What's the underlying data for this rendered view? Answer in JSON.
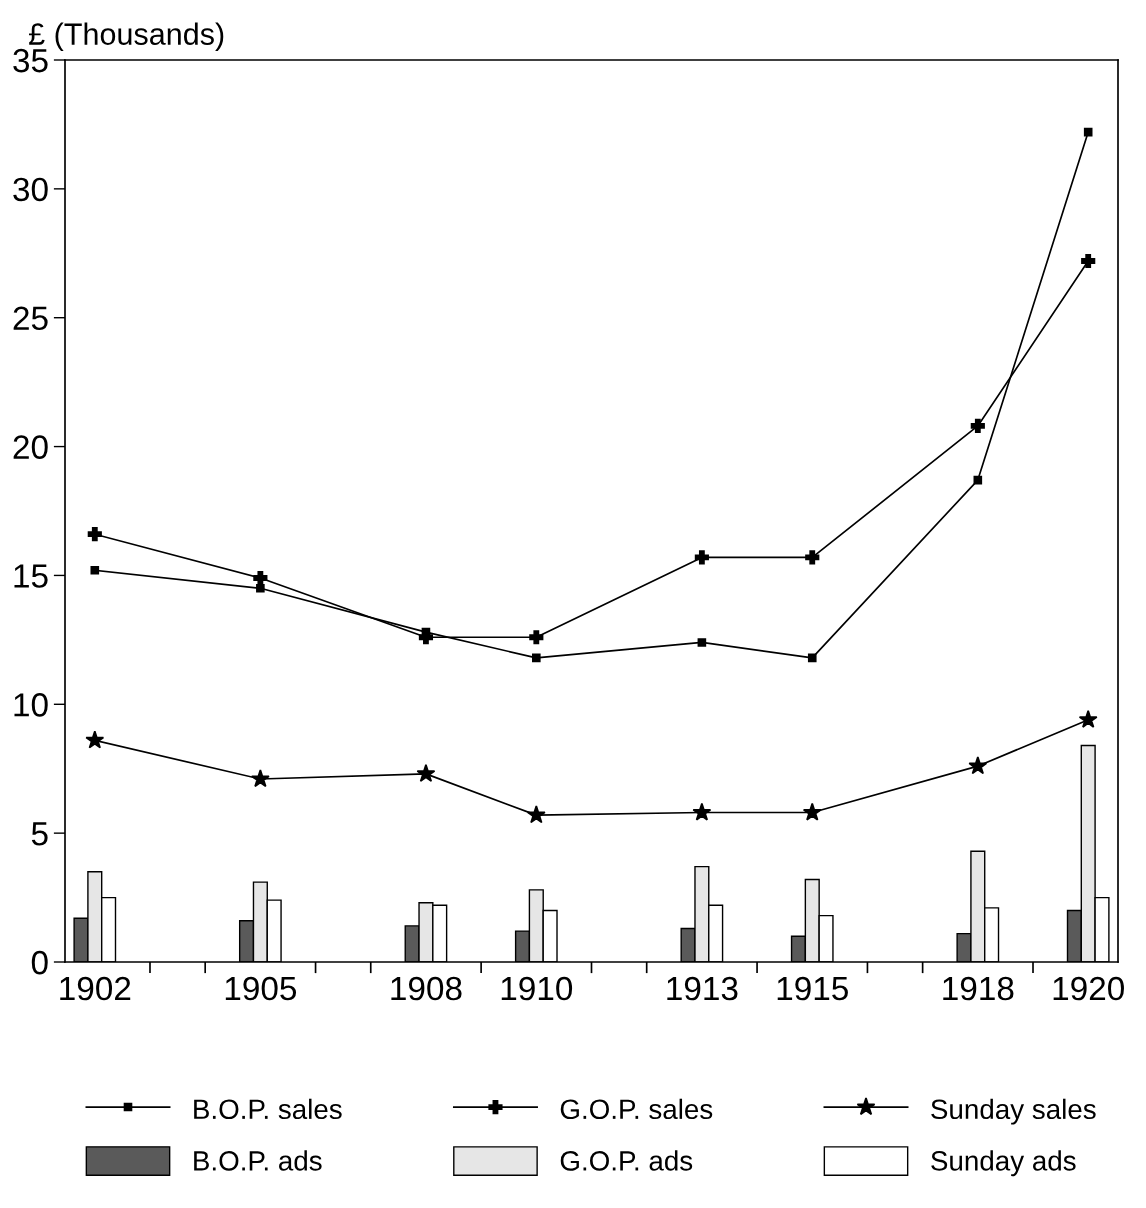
{
  "chart_data": {
    "type": "line",
    "ylabel": "£ (Thousands)",
    "xlim": [
      1901.46,
      1920.54
    ],
    "ylim": [
      0,
      35
    ],
    "xticks": [
      1902,
      {
        "value": 1903,
        "label": null
      },
      {
        "value": 1904,
        "label": null
      },
      1905,
      {
        "value": 1906,
        "label": null
      },
      {
        "value": 1907,
        "label": null
      },
      1908,
      {
        "value": 1909,
        "label": null
      },
      1910,
      {
        "value": 1911,
        "label": null
      },
      {
        "value": 1912,
        "label": null
      },
      1913,
      {
        "value": 1914,
        "label": null
      },
      1915,
      {
        "value": 1916,
        "label": null
      },
      {
        "value": 1917,
        "label": null
      },
      1918,
      {
        "value": 1919,
        "label": null
      },
      1920
    ],
    "yticks": [
      0,
      5,
      10,
      15,
      20,
      25,
      30,
      35
    ],
    "grid": false,
    "legend": "bottom",
    "series": [
      {
        "name": "B.O.P. sales",
        "marker": "square",
        "color": "#000000",
        "x": [
          1902,
          1905,
          1908,
          1910,
          1913,
          1915,
          1918,
          1920
        ],
        "values": [
          15.2,
          14.5,
          12.8,
          11.8,
          12.4,
          11.8,
          18.7,
          32.2
        ]
      },
      {
        "name": "G.O.P. sales",
        "marker": "cross",
        "color": "#000000",
        "x": [
          1902,
          1905,
          1908,
          1910,
          1913,
          1915,
          1918,
          1920
        ],
        "values": [
          16.6,
          14.9,
          12.6,
          12.6,
          15.7,
          15.7,
          20.8,
          27.2
        ]
      },
      {
        "name": "Sunday sales",
        "marker": "star",
        "color": "#000000",
        "x": [
          1902,
          1905,
          1908,
          1910,
          1913,
          1915,
          1918,
          1920
        ],
        "values": [
          8.6,
          7.1,
          7.3,
          5.7,
          5.8,
          5.8,
          7.6,
          9.4
        ]
      },
      {
        "name": "B.O.P. ads",
        "type": "bar",
        "color": "#5a5a5a",
        "x": [
          1902,
          1905,
          1908,
          1910,
          1913,
          1915,
          1918,
          1920
        ],
        "values": [
          1.7,
          1.6,
          1.4,
          1.2,
          1.3,
          1.0,
          1.1,
          2.0
        ]
      },
      {
        "name": "G.O.P. ads",
        "type": "bar",
        "color": "#e6e6e6",
        "x": [
          1902,
          1905,
          1908,
          1910,
          1913,
          1915,
          1918,
          1920
        ],
        "values": [
          3.5,
          3.1,
          2.3,
          2.8,
          3.7,
          3.2,
          4.3,
          8.4
        ]
      },
      {
        "name": "Sunday ads",
        "type": "bar",
        "color": "#ffffff",
        "x": [
          1902,
          1905,
          1908,
          1910,
          1913,
          1915,
          1918,
          1920
        ],
        "values": [
          2.5,
          2.4,
          2.2,
          2.0,
          2.2,
          1.8,
          2.1,
          2.5
        ]
      }
    ]
  }
}
